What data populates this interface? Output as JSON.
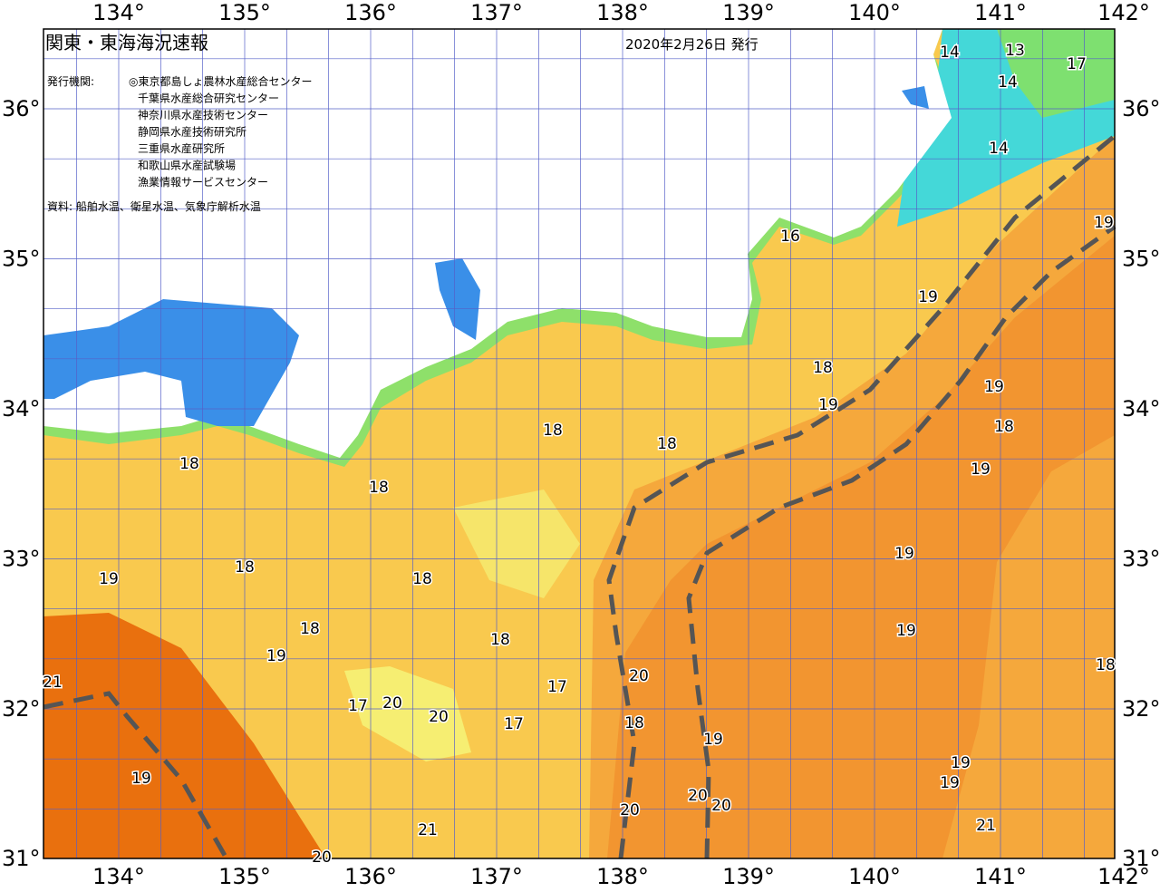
{
  "header": {
    "title": "関東・東海海況速報",
    "date": "2020年2月26日 発行"
  },
  "agencies": {
    "label": "発行機関:",
    "items": [
      "◎東京都島しょ農林水産総合センター",
      "千葉県水産総合研究センター",
      "神奈川県水産技術センター",
      "静岡県水産技術研究所",
      "三重県水産研究所",
      "和歌山県水産試験場",
      "漁業情報サービスセンター"
    ]
  },
  "source": "資料: 船舶水温、衛星水温、気象庁解析水温",
  "axes": {
    "longitudes": [
      "134°",
      "135°",
      "136°",
      "137°",
      "138°",
      "139°",
      "140°",
      "141°",
      "142°"
    ],
    "latitudes": [
      "36°",
      "35°",
      "34°",
      "33°",
      "32°",
      "31°"
    ]
  },
  "contour_labels": [
    "14",
    "13",
    "17",
    "14",
    "14",
    "16",
    "19",
    "19",
    "18",
    "19",
    "19",
    "18",
    "18",
    "18",
    "19",
    "19",
    "18",
    "18",
    "19",
    "18",
    "18",
    "18",
    "19",
    "18",
    "19",
    "17",
    "17",
    "17",
    "20",
    "20",
    "20",
    "18",
    "19",
    "21",
    "21",
    "20",
    "20",
    "19",
    "19",
    "21",
    "18",
    "20",
    "20",
    "19"
  ]
}
